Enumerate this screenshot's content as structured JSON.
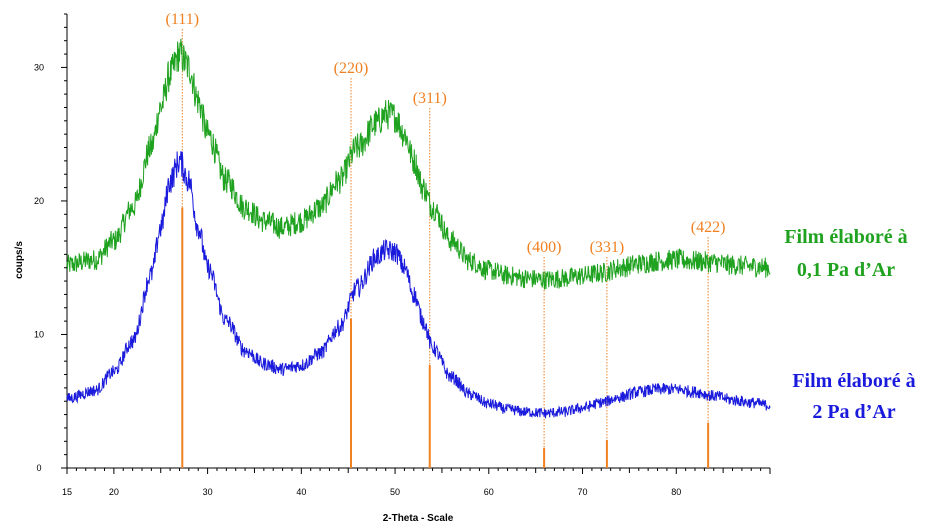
{
  "chart_data": {
    "type": "line",
    "xlabel": "2-Theta - Scale",
    "ylabel": "coups/s",
    "xlim": [
      15,
      90
    ],
    "ylim": [
      0,
      34
    ],
    "x_ticks": [
      15,
      20,
      30,
      40,
      50,
      60,
      70,
      80
    ],
    "y_ticks": [
      0,
      10,
      20,
      30
    ],
    "series": [
      {
        "name": "Film élaboré à 0,1 Pa d'Ar",
        "label_lines": [
          "Film élaboré à",
          "0,1 Pa d’Ar"
        ],
        "color": "#1fa21f",
        "x": [
          15,
          18,
          20,
          22,
          24,
          25,
          26,
          27,
          28,
          29,
          30,
          32,
          34,
          36,
          38,
          40,
          42,
          44,
          46,
          48,
          49,
          50,
          51,
          52,
          53,
          54,
          56,
          58,
          60,
          62,
          64,
          66,
          68,
          70,
          72,
          74,
          76,
          78,
          80,
          82,
          84,
          86,
          88,
          90
        ],
        "y": [
          15.2,
          15.6,
          17.0,
          19.5,
          24.0,
          27.0,
          29.5,
          31.0,
          30.0,
          27.5,
          25.0,
          21.5,
          19.5,
          18.5,
          18.0,
          18.5,
          19.5,
          21.5,
          24.0,
          25.8,
          26.5,
          26.3,
          25.0,
          23.0,
          21.0,
          19.5,
          17.0,
          15.5,
          14.8,
          14.4,
          14.2,
          14.1,
          14.2,
          14.4,
          14.6,
          15.0,
          15.3,
          15.5,
          15.6,
          15.5,
          15.4,
          15.2,
          15.1,
          15.0
        ]
      },
      {
        "name": "Film élaboré à 2 Pa d'Ar",
        "label_lines": [
          "Film élaboré à",
          "2 Pa d’Ar"
        ],
        "color": "#1a1adc",
        "x": [
          15,
          18,
          20,
          22,
          24,
          25,
          26,
          27,
          28,
          29,
          30,
          32,
          34,
          36,
          38,
          40,
          42,
          44,
          46,
          48,
          49,
          50,
          51,
          52,
          53,
          54,
          56,
          58,
          60,
          62,
          64,
          66,
          68,
          70,
          72,
          74,
          76,
          78,
          80,
          82,
          84,
          86,
          88,
          90
        ],
        "y": [
          5.2,
          5.8,
          7.2,
          9.5,
          14.5,
          18.0,
          21.5,
          23.0,
          21.5,
          18.0,
          15.0,
          11.0,
          8.8,
          7.8,
          7.4,
          7.7,
          8.6,
          10.5,
          13.5,
          15.8,
          16.3,
          16.2,
          15.0,
          13.0,
          11.0,
          9.0,
          6.8,
          5.5,
          4.8,
          4.4,
          4.2,
          4.1,
          4.2,
          4.5,
          4.9,
          5.3,
          5.7,
          5.9,
          5.9,
          5.7,
          5.4,
          5.1,
          4.9,
          4.7
        ]
      }
    ],
    "reference_peaks": [
      {
        "label": "(111)",
        "x": 27.3,
        "height": 19.5
      },
      {
        "label": "(220)",
        "x": 45.3,
        "height": 11.2
      },
      {
        "label": "(311)",
        "x": 53.7,
        "height": 7.7
      },
      {
        "label": "(400)",
        "x": 65.9,
        "height": 1.5
      },
      {
        "label": "(331)",
        "x": 72.6,
        "height": 2.1
      },
      {
        "label": "(422)",
        "x": 83.4,
        "height": 3.4
      }
    ],
    "reference_color": "#f08020"
  }
}
